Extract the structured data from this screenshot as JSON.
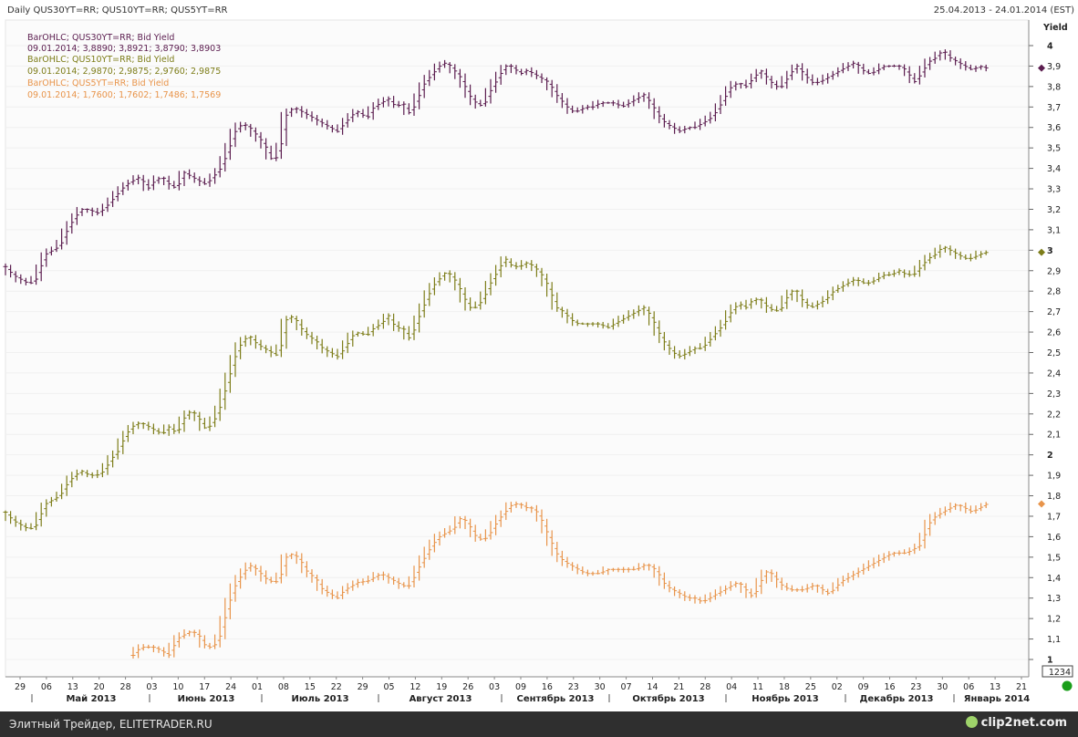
{
  "header": {
    "title": "Daily QUS30YT=RR; QUS10YT=RR; QUS5YT=RR",
    "date_range": "25.04.2013 - 24.01.2014 (EST)"
  },
  "footer": {
    "text": "Элитный Трейдер, ELITETRADER.RU",
    "watermark": "clip2net.com"
  },
  "colors": {
    "s30": "#5b1d4f",
    "s10": "#7d7d19",
    "s5": "#e8944a",
    "badge_green": "#1a9e1a"
  },
  "chart_data": {
    "type": "line",
    "ylabel": "Yield",
    "ylim": [
      1.0,
      4.0
    ],
    "y_ticks": [
      "1",
      "1,1",
      "1,2",
      "1,3",
      "1,4",
      "1,5",
      "1,6",
      "1,7",
      "1,8",
      "1,9",
      "2",
      "2,1",
      "2,2",
      "2,3",
      "2,4",
      "2,5",
      "2,6",
      "2,7",
      "2,8",
      "2,9",
      "3",
      "3,1",
      "3,2",
      "3,3",
      "3,4",
      "3,5",
      "3,6",
      "3,7",
      "3,8",
      "3,9",
      "4"
    ],
    "bold_ticks": [
      "1",
      "2",
      "3",
      "4"
    ],
    "y_readout": "1234",
    "x_ticks": [
      "29",
      "06",
      "13",
      "20",
      "28",
      "03",
      "10",
      "17",
      "24",
      "01",
      "08",
      "15",
      "22",
      "29",
      "05",
      "12",
      "19",
      "26",
      "03",
      "09",
      "16",
      "23",
      "30",
      "07",
      "14",
      "21",
      "28",
      "04",
      "11",
      "18",
      "25",
      "02",
      "09",
      "16",
      "23",
      "30",
      "06",
      "13",
      "21"
    ],
    "months": [
      "Май 2013",
      "Июнь 2013",
      "Июль 2013",
      "Август 2013",
      "Сентябрь 2013",
      "Октябрь 2013",
      "Ноябрь 2013",
      "Декабрь 2013",
      "Январь 2014"
    ],
    "legend": [
      {
        "title": "BarOHLC; QUS30YT=RR; Bid Yield",
        "values": "09.01.2014; 3,8890; 3,8921; 3,8790; 3,8903"
      },
      {
        "title": "BarOHLC; QUS10YT=RR; Bid Yield",
        "values": "09.01.2014; 2,9870; 2,9875; 2,9760; 2,9875"
      },
      {
        "title": "BarOHLC; QUS5YT=RR; Bid Yield",
        "values": "09.01.2014; 1,7600; 1,7602; 1,7486; 1,7569"
      }
    ],
    "series": [
      {
        "name": "QUS30YT=RR",
        "color": "#5b1d4f",
        "last": 3.89,
        "x_keys": [
          0,
          8,
          16,
          24,
          32,
          44,
          52,
          60,
          68,
          76,
          84,
          92,
          100,
          108,
          116,
          124,
          132,
          140,
          148,
          156,
          164,
          172,
          180,
          188,
          196,
          204,
          212,
          220,
          228,
          236,
          244,
          252,
          260,
          268,
          276,
          284,
          292,
          300,
          308,
          316,
          324,
          332,
          340,
          348,
          356,
          364,
          372,
          380,
          388,
          396,
          404,
          412,
          420,
          428,
          436,
          444,
          452,
          460,
          468,
          476,
          484,
          492,
          500,
          508,
          516,
          524,
          532,
          540,
          548,
          556,
          564,
          572,
          580,
          588,
          596,
          604,
          612,
          620,
          628,
          636,
          644,
          652,
          660,
          668,
          676,
          684,
          692,
          700,
          708,
          716,
          724,
          732,
          740,
          748,
          756,
          764,
          772,
          780,
          788,
          796,
          804,
          812,
          820,
          828,
          836,
          844,
          852,
          860,
          868,
          876,
          884,
          892,
          900,
          908,
          916,
          924,
          932,
          940,
          948,
          956,
          964,
          972,
          980,
          988,
          996,
          1004,
          1012,
          1020,
          1028,
          1036,
          1044,
          1052,
          1060,
          1068,
          1076
        ],
        "y_keys": [
          2.92,
          2.88,
          2.86,
          2.84,
          2.84,
          2.98,
          3.0,
          3.02,
          3.1,
          3.16,
          3.2,
          3.2,
          3.18,
          3.2,
          3.24,
          3.28,
          3.32,
          3.34,
          3.36,
          3.3,
          3.34,
          3.36,
          3.32,
          3.3,
          3.38,
          3.36,
          3.34,
          3.32,
          3.36,
          3.4,
          3.48,
          3.58,
          3.62,
          3.6,
          3.56,
          3.52,
          3.44,
          3.46,
          3.66,
          3.7,
          3.68,
          3.66,
          3.64,
          3.62,
          3.6,
          3.58,
          3.62,
          3.66,
          3.68,
          3.64,
          3.7,
          3.72,
          3.74,
          3.7,
          3.72,
          3.66,
          3.74,
          3.82,
          3.86,
          3.9,
          3.92,
          3.88,
          3.84,
          3.76,
          3.72,
          3.7,
          3.78,
          3.84,
          3.9,
          3.9,
          3.86,
          3.88,
          3.86,
          3.84,
          3.82,
          3.76,
          3.72,
          3.68,
          3.68,
          3.7,
          3.7,
          3.72,
          3.72,
          3.72,
          3.7,
          3.72,
          3.74,
          3.76,
          3.72,
          3.66,
          3.62,
          3.6,
          3.58,
          3.6,
          3.6,
          3.62,
          3.64,
          3.68,
          3.74,
          3.8,
          3.82,
          3.8,
          3.84,
          3.88,
          3.84,
          3.8,
          3.8,
          3.86,
          3.9,
          3.86,
          3.82,
          3.82,
          3.84,
          3.86,
          3.88,
          3.9,
          3.92,
          3.88,
          3.86,
          3.88,
          3.9,
          3.9,
          3.9,
          3.88,
          3.82,
          3.86,
          3.92,
          3.94,
          3.98,
          3.94,
          3.92,
          3.9,
          3.88,
          3.9,
          3.89
        ]
      },
      {
        "name": "QUS10YT=RR",
        "color": "#7d7d19",
        "last": 2.99,
        "x_keys": [
          0,
          8,
          16,
          24,
          32,
          44,
          52,
          60,
          68,
          76,
          84,
          92,
          100,
          108,
          116,
          124,
          132,
          140,
          148,
          156,
          164,
          172,
          180,
          188,
          196,
          204,
          212,
          220,
          228,
          236,
          244,
          252,
          260,
          268,
          276,
          284,
          292,
          300,
          308,
          316,
          324,
          332,
          340,
          348,
          356,
          364,
          372,
          380,
          388,
          396,
          404,
          412,
          420,
          428,
          436,
          444,
          452,
          460,
          468,
          476,
          484,
          492,
          500,
          508,
          516,
          524,
          532,
          540,
          548,
          556,
          564,
          572,
          580,
          588,
          596,
          604,
          612,
          620,
          628,
          636,
          644,
          652,
          660,
          668,
          676,
          684,
          692,
          700,
          708,
          716,
          724,
          732,
          740,
          748,
          756,
          764,
          772,
          780,
          788,
          796,
          804,
          812,
          820,
          828,
          836,
          844,
          852,
          860,
          868,
          876,
          884,
          892,
          900,
          908,
          916,
          924,
          932,
          940,
          948,
          956,
          964,
          972,
          980,
          988,
          996,
          1004,
          1012,
          1020,
          1028,
          1036,
          1044,
          1052,
          1060,
          1068,
          1076
        ],
        "y_keys": [
          1.72,
          1.68,
          1.66,
          1.64,
          1.64,
          1.76,
          1.78,
          1.8,
          1.86,
          1.9,
          1.92,
          1.9,
          1.9,
          1.92,
          1.98,
          2.02,
          2.1,
          2.14,
          2.16,
          2.14,
          2.12,
          2.1,
          2.14,
          2.1,
          2.18,
          2.22,
          2.18,
          2.12,
          2.16,
          2.24,
          2.36,
          2.48,
          2.56,
          2.58,
          2.54,
          2.52,
          2.5,
          2.48,
          2.66,
          2.68,
          2.62,
          2.58,
          2.56,
          2.52,
          2.5,
          2.48,
          2.52,
          2.58,
          2.6,
          2.58,
          2.62,
          2.64,
          2.68,
          2.62,
          2.62,
          2.56,
          2.66,
          2.74,
          2.82,
          2.86,
          2.9,
          2.86,
          2.8,
          2.72,
          2.72,
          2.76,
          2.84,
          2.9,
          2.96,
          2.92,
          2.92,
          2.94,
          2.92,
          2.88,
          2.82,
          2.72,
          2.7,
          2.66,
          2.64,
          2.64,
          2.64,
          2.64,
          2.62,
          2.64,
          2.66,
          2.68,
          2.7,
          2.72,
          2.68,
          2.6,
          2.54,
          2.5,
          2.48,
          2.5,
          2.52,
          2.52,
          2.56,
          2.6,
          2.64,
          2.7,
          2.74,
          2.72,
          2.76,
          2.76,
          2.72,
          2.7,
          2.72,
          2.8,
          2.8,
          2.74,
          2.72,
          2.74,
          2.76,
          2.8,
          2.82,
          2.84,
          2.86,
          2.84,
          2.84,
          2.86,
          2.88,
          2.88,
          2.9,
          2.88,
          2.88,
          2.92,
          2.96,
          2.98,
          3.02,
          3.0,
          2.98,
          2.96,
          2.96,
          2.98,
          2.99
        ]
      },
      {
        "name": "QUS5YT=RR",
        "color": "#e8944a",
        "last": 1.76,
        "x_keys": [
          140,
          148,
          156,
          164,
          172,
          180,
          188,
          196,
          204,
          212,
          220,
          228,
          236,
          244,
          252,
          260,
          268,
          276,
          284,
          292,
          300,
          308,
          316,
          324,
          332,
          340,
          348,
          356,
          364,
          372,
          380,
          388,
          396,
          404,
          412,
          420,
          428,
          436,
          444,
          452,
          460,
          468,
          476,
          484,
          492,
          500,
          508,
          516,
          524,
          532,
          540,
          548,
          556,
          564,
          572,
          580,
          588,
          596,
          604,
          612,
          620,
          628,
          636,
          644,
          652,
          660,
          668,
          676,
          684,
          692,
          700,
          708,
          716,
          724,
          732,
          740,
          748,
          756,
          764,
          772,
          780,
          788,
          796,
          804,
          812,
          820,
          828,
          836,
          844,
          852,
          860,
          868,
          876,
          884,
          892,
          900,
          908,
          916,
          924,
          932,
          940,
          948,
          956,
          964,
          972,
          980,
          988,
          996,
          1004,
          1012,
          1020,
          1028,
          1036,
          1044,
          1052,
          1060,
          1068,
          1076
        ],
        "y_keys": [
          1.02,
          1.06,
          1.06,
          1.06,
          1.04,
          1.02,
          1.1,
          1.12,
          1.14,
          1.12,
          1.06,
          1.06,
          1.12,
          1.26,
          1.36,
          1.42,
          1.46,
          1.44,
          1.4,
          1.38,
          1.38,
          1.5,
          1.52,
          1.48,
          1.42,
          1.4,
          1.34,
          1.32,
          1.3,
          1.34,
          1.36,
          1.38,
          1.38,
          1.4,
          1.42,
          1.4,
          1.38,
          1.36,
          1.36,
          1.44,
          1.5,
          1.56,
          1.6,
          1.62,
          1.64,
          1.7,
          1.66,
          1.6,
          1.58,
          1.62,
          1.68,
          1.72,
          1.76,
          1.76,
          1.74,
          1.74,
          1.68,
          1.6,
          1.52,
          1.48,
          1.46,
          1.44,
          1.42,
          1.42,
          1.42,
          1.44,
          1.44,
          1.44,
          1.44,
          1.44,
          1.46,
          1.46,
          1.42,
          1.36,
          1.34,
          1.32,
          1.3,
          1.3,
          1.28,
          1.3,
          1.32,
          1.34,
          1.36,
          1.38,
          1.34,
          1.3,
          1.38,
          1.44,
          1.4,
          1.36,
          1.34,
          1.34,
          1.34,
          1.36,
          1.36,
          1.32,
          1.34,
          1.38,
          1.4,
          1.42,
          1.44,
          1.46,
          1.48,
          1.5,
          1.52,
          1.52,
          1.52,
          1.54,
          1.56,
          1.66,
          1.7,
          1.72,
          1.74,
          1.76,
          1.74,
          1.72,
          1.74,
          1.76
        ]
      }
    ]
  }
}
